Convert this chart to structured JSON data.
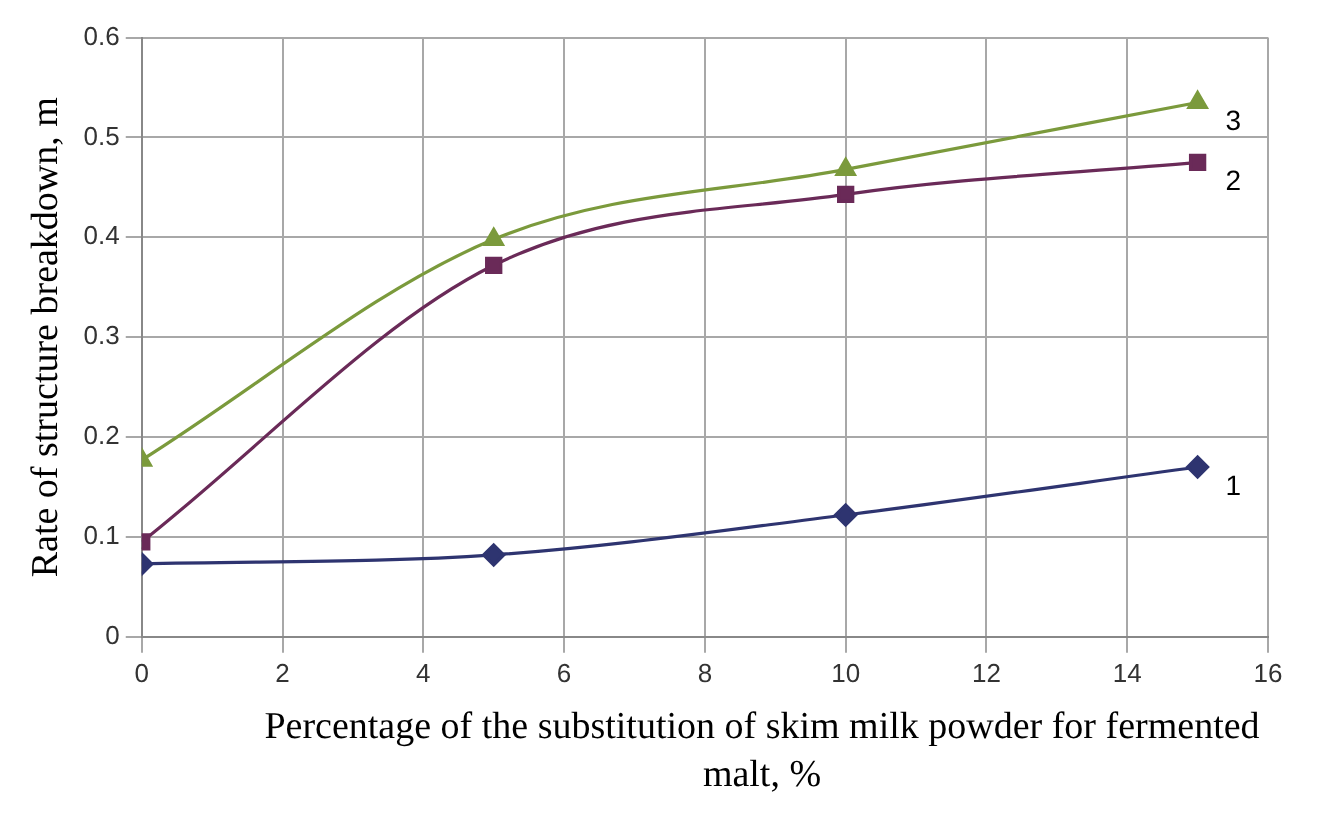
{
  "chart_data": {
    "type": "line",
    "xlabel": "Percentage of the substitution of skim milk powder for fermented malt, %",
    "ylabel": "Rate of structure breakdown, m",
    "x": [
      0,
      5,
      10,
      15
    ],
    "series": [
      {
        "name": "1",
        "color": "#2e3470",
        "marker": "diamond",
        "values": [
          0.073,
          0.082,
          0.122,
          0.17
        ]
      },
      {
        "name": "2",
        "color": "#6a2a58",
        "marker": "square",
        "values": [
          0.095,
          0.372,
          0.443,
          0.475
        ]
      },
      {
        "name": "3",
        "color": "#7b9a3c",
        "marker": "triangle",
        "values": [
          0.177,
          0.398,
          0.468,
          0.535
        ]
      }
    ],
    "xlim": [
      0,
      16
    ],
    "xticks": [
      0,
      2,
      4,
      6,
      8,
      10,
      12,
      14,
      16
    ],
    "ylim": [
      0,
      0.6
    ],
    "yticks": [
      0,
      0.1,
      0.2,
      0.3,
      0.4,
      0.5,
      0.6
    ],
    "grid": true,
    "legend": false
  }
}
